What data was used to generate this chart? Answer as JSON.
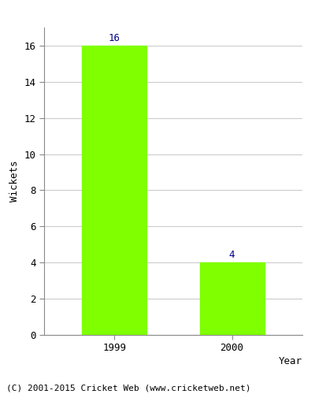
{
  "categories": [
    "1999",
    "2000"
  ],
  "values": [
    16,
    4
  ],
  "bar_color": "#7FFF00",
  "bar_edgecolor": "#7FFF00",
  "xlabel": "Year",
  "ylabel": "Wickets",
  "ylim": [
    0,
    17
  ],
  "yticks": [
    0,
    2,
    4,
    6,
    8,
    10,
    12,
    14,
    16
  ],
  "annotation_color": "#00008B",
  "annotation_fontsize": 9,
  "axis_label_fontsize": 9,
  "tick_fontsize": 9,
  "background_color": "#ffffff",
  "footer_text": "(C) 2001-2015 Cricket Web (www.cricketweb.net)",
  "footer_fontsize": 8,
  "grid_color": "#cccccc",
  "bar_width": 0.55
}
